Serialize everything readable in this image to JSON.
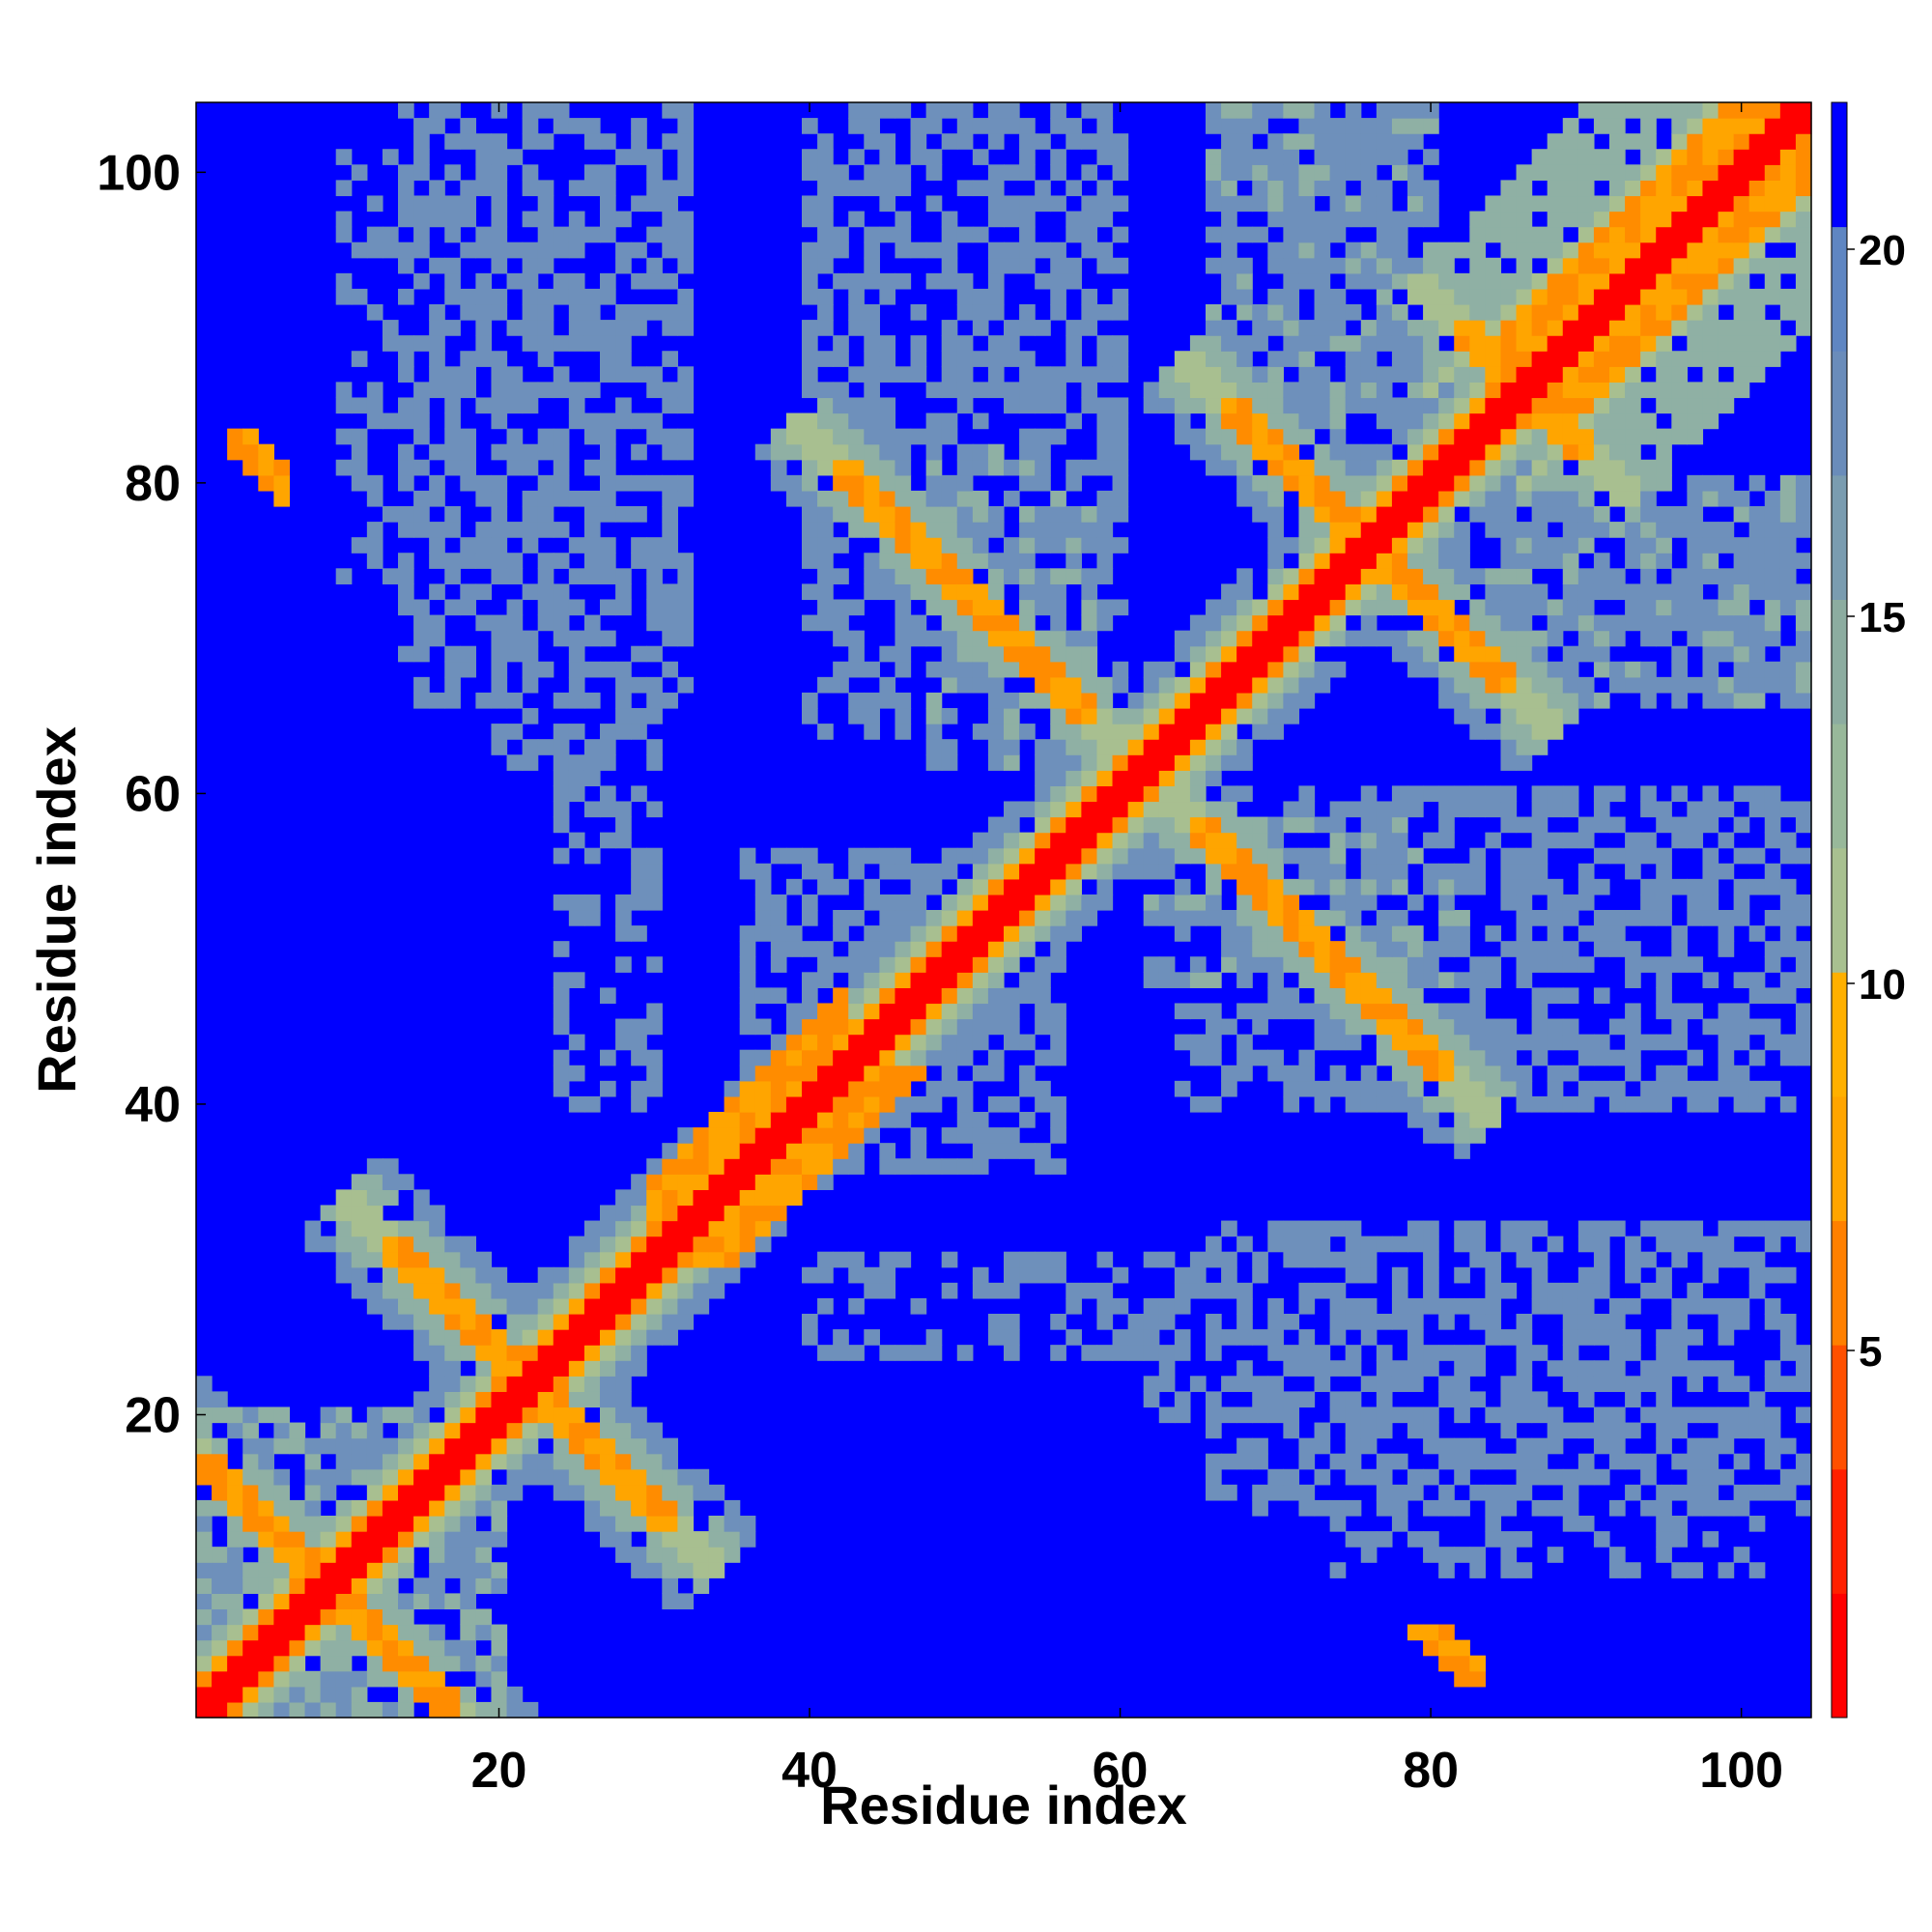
{
  "chart_data": {
    "type": "heatmap",
    "title": "",
    "xlabel": "Residue index",
    "ylabel": "Residue index",
    "n_residues": 104,
    "xlim": [
      1,
      104
    ],
    "ylim": [
      1,
      104
    ],
    "xticks": [
      20,
      40,
      60,
      80,
      100
    ],
    "yticks": [
      20,
      40,
      60,
      80,
      100
    ],
    "colorbar": {
      "ticks": [
        5,
        10,
        15,
        20
      ],
      "range": [
        0,
        22
      ],
      "colors": [
        "#ff0000",
        "#ff2000",
        "#ff5000",
        "#ff8000",
        "#ffa500",
        "#ffb000",
        "#a8c090",
        "#98b89a",
        "#8caca0",
        "#7a9cb0",
        "#6a8cba",
        "#5f86c2",
        "#0000ff"
      ]
    },
    "colors": {
      "near": "#ff0000",
      "orange": "#ff8c00",
      "mid": "#a8bf90",
      "far": "#6e90bb",
      "none": "#0000ff"
    },
    "contact_clusters": [
      {
        "type": "diagonal",
        "desc": "self contacts"
      },
      {
        "type": "antiparallel",
        "center": [
          9,
          9
        ],
        "span": 8
      },
      {
        "type": "antiparallel",
        "center": [
          22,
          22
        ],
        "span": 9
      },
      {
        "type": "parallel",
        "from": [
          32,
          36
        ],
        "to": [
          42,
          46
        ]
      },
      {
        "type": "antiparallel",
        "center": [
          76,
          76
        ],
        "span": 9
      },
      {
        "type": "antiparallel",
        "center": [
          50,
          73
        ],
        "span": 7
      },
      {
        "type": "antiparallel",
        "center": [
          72,
          52
        ],
        "span": 7
      },
      {
        "type": "parallel",
        "from": [
          86,
          90
        ],
        "to": [
          104,
          108
        ]
      },
      {
        "type": "patch",
        "at": [
          4,
          81
        ]
      },
      {
        "type": "patch",
        "at": [
          81,
          4
        ]
      }
    ]
  }
}
